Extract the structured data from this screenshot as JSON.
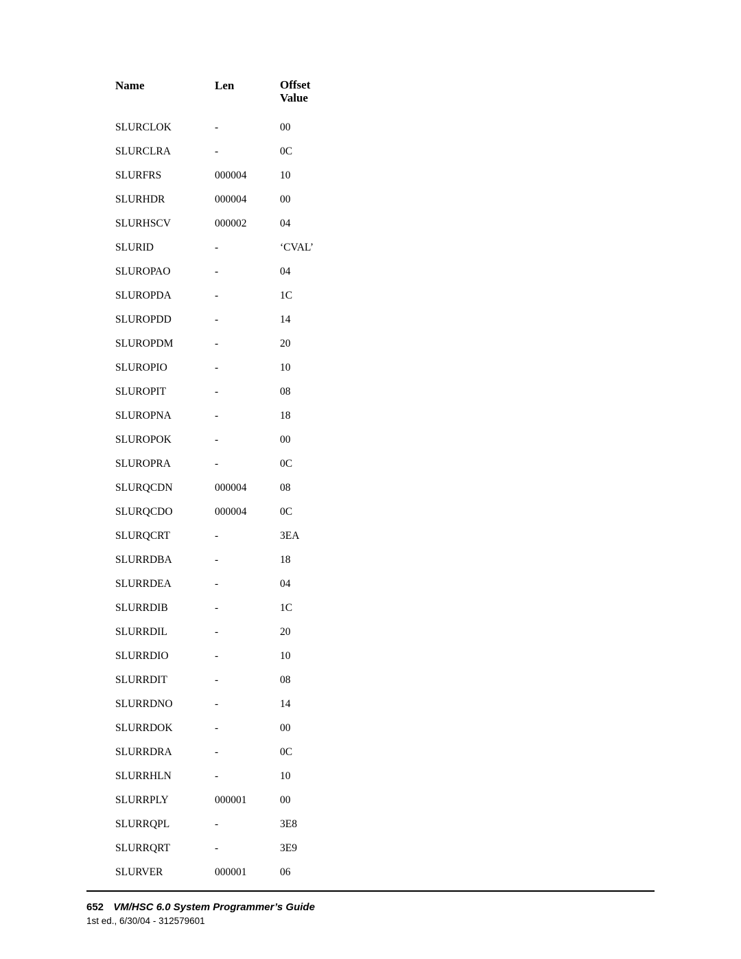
{
  "table": {
    "headers": {
      "name": "Name",
      "len": "Len",
      "offset": "Offset\nValue"
    },
    "rows": [
      {
        "name": "SLURCLOK",
        "len": "-",
        "off": "00"
      },
      {
        "name": "SLURCLRA",
        "len": "-",
        "off": "0C"
      },
      {
        "name": "SLURFRS",
        "len": "000004",
        "off": "10"
      },
      {
        "name": "SLURHDR",
        "len": "000004",
        "off": "00"
      },
      {
        "name": "SLURHSCV",
        "len": "000002",
        "off": "04"
      },
      {
        "name": "SLURID",
        "len": "-",
        "off": "‘CVAL’"
      },
      {
        "name": "SLUROPAO",
        "len": "-",
        "off": "04"
      },
      {
        "name": "SLUROPDA",
        "len": "-",
        "off": "1C"
      },
      {
        "name": "SLUROPDD",
        "len": "-",
        "off": "14"
      },
      {
        "name": "SLUROPDM",
        "len": "-",
        "off": "20"
      },
      {
        "name": "SLUROPIO",
        "len": "-",
        "off": "10"
      },
      {
        "name": "SLUROPIT",
        "len": "-",
        "off": "08"
      },
      {
        "name": "SLUROPNA",
        "len": "-",
        "off": "18"
      },
      {
        "name": "SLUROPOK",
        "len": "-",
        "off": "00"
      },
      {
        "name": "SLUROPRA",
        "len": "-",
        "off": "0C"
      },
      {
        "name": "SLURQCDN",
        "len": "000004",
        "off": "08"
      },
      {
        "name": "SLURQCDO",
        "len": "000004",
        "off": "0C"
      },
      {
        "name": "SLURQCRT",
        "len": "-",
        "off": "3EA"
      },
      {
        "name": "SLURRDBA",
        "len": "-",
        "off": "18"
      },
      {
        "name": "SLURRDEA",
        "len": "-",
        "off": "04"
      },
      {
        "name": "SLURRDIB",
        "len": "-",
        "off": "1C"
      },
      {
        "name": "SLURRDIL",
        "len": "-",
        "off": "20"
      },
      {
        "name": "SLURRDIO",
        "len": "-",
        "off": "10"
      },
      {
        "name": "SLURRDIT",
        "len": "-",
        "off": "08"
      },
      {
        "name": "SLURRDNO",
        "len": "-",
        "off": "14"
      },
      {
        "name": "SLURRDOK",
        "len": "-",
        "off": "00"
      },
      {
        "name": "SLURRDRA",
        "len": "-",
        "off": "0C"
      },
      {
        "name": "SLURRHLN",
        "len": "-",
        "off": "10"
      },
      {
        "name": "SLURRPLY",
        "len": "000001",
        "off": "00"
      },
      {
        "name": "SLURRQPL",
        "len": "-",
        "off": "3E8"
      },
      {
        "name": "SLURRQRT",
        "len": "-",
        "off": "3E9"
      },
      {
        "name": "SLURVER",
        "len": "000001",
        "off": "06"
      }
    ]
  },
  "footer": {
    "page_number": "652",
    "doc_title": "VM/HSC 6.0 System Programmer’s Guide",
    "edition": "1st ed., 6/30/04 - 312579601"
  }
}
